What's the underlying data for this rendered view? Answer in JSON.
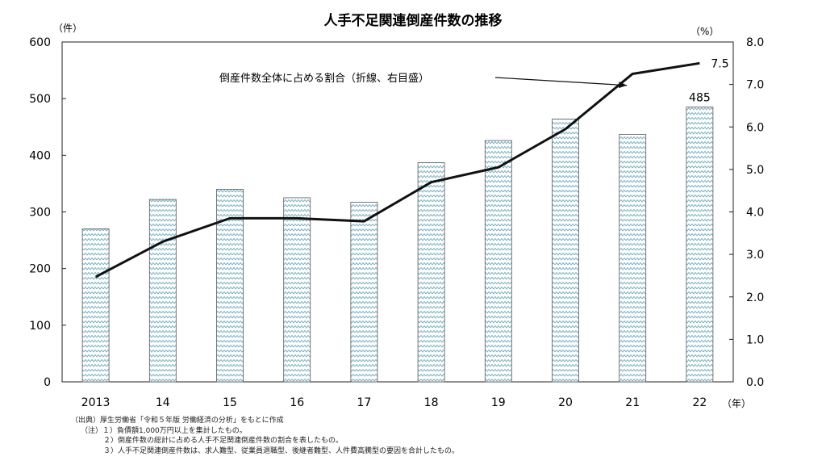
{
  "chart_data": {
    "type": "bar+line",
    "title": "人手不足関連倒産件数の推移",
    "categories": [
      "2013",
      "14",
      "15",
      "16",
      "17",
      "18",
      "19",
      "20",
      "21",
      "22"
    ],
    "x_unit_label": "（年）",
    "y_left_unit_label": "（件）",
    "y_right_unit_label": "（%）",
    "y_left_ticks": [
      "0",
      "100",
      "200",
      "300",
      "400",
      "500",
      "600"
    ],
    "y_right_ticks": [
      "0.0",
      "1.0",
      "2.0",
      "3.0",
      "4.0",
      "5.0",
      "6.0",
      "7.0",
      "8.0"
    ],
    "ylim_left": [
      0,
      600
    ],
    "ylim_right": [
      0,
      8
    ],
    "series": [
      {
        "type": "bar",
        "axis": "left",
        "values": [
          270,
          322,
          340,
          325,
          317,
          387,
          426,
          464,
          437,
          485
        ],
        "color": "#7ab3c4"
      },
      {
        "type": "line",
        "axis": "right",
        "name": "倒産件数全体に占める割合（折線、右目盛）",
        "values": [
          2.47,
          3.3,
          3.85,
          3.85,
          3.78,
          4.7,
          5.05,
          5.95,
          7.25,
          7.5
        ],
        "color": "#111111"
      }
    ],
    "data_labels": {
      "bar_last": "485",
      "line_last": "7.5"
    },
    "annotation": "倒産件数全体に占める割合（折線、右目盛）",
    "grid": false
  },
  "notes": {
    "source": "（出典）厚生労働省「令和５年版 労働経済の分析」をもとに作成",
    "note1": "（注）１）負債額1,000万円以上を集計したもの。",
    "note2": "２）倒産件数の総計に占める人手不足関連倒産件数の割合を表したもの。",
    "note3": "３）人手不足関連倒産件数は、求人難型、従業員退職型、後継者難型、人件費高騰型の要因を合計したもの。"
  }
}
